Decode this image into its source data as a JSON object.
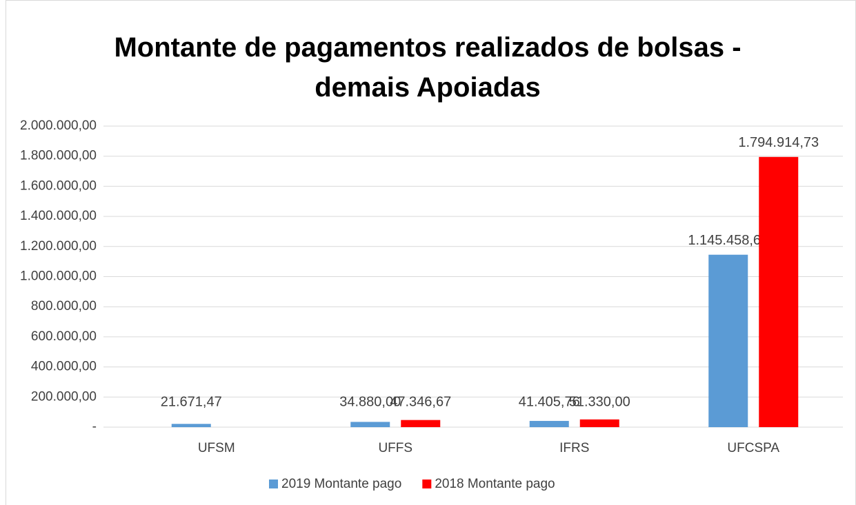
{
  "chart_data": {
    "type": "bar",
    "title": "Montante de pagamentos realizados de bolsas - demais Apoiadas",
    "categories": [
      "UFSM",
      "UFFS",
      "IFRS",
      "UFCSPA"
    ],
    "series": [
      {
        "name": "2019 Montante pago",
        "color": "#5b9bd5",
        "values": [
          21671.47,
          34880.0,
          41405.76,
          1145458.66
        ],
        "value_labels": [
          "21.671,47",
          "34.880,00",
          "41.405,76",
          "1.145.458,66"
        ]
      },
      {
        "name": "2018 Montante pago",
        "color": "#ff0000",
        "values": [
          null,
          47346.67,
          51330.0,
          1794914.73
        ],
        "value_labels": [
          null,
          "47.346,67",
          "51.330,00",
          "1.794.914,73"
        ]
      }
    ],
    "ylim": [
      0,
      2000000
    ],
    "yticks": [
      {
        "value": 0,
        "label": "-"
      },
      {
        "value": 200000,
        "label": "200.000,00"
      },
      {
        "value": 400000,
        "label": "400.000,00"
      },
      {
        "value": 600000,
        "label": "600.000,00"
      },
      {
        "value": 800000,
        "label": "800.000,00"
      },
      {
        "value": 1000000,
        "label": "1.000.000,00"
      },
      {
        "value": 1200000,
        "label": "1.200.000,00"
      },
      {
        "value": 1400000,
        "label": "1.400.000,00"
      },
      {
        "value": 1600000,
        "label": "1.600.000,00"
      },
      {
        "value": 1800000,
        "label": "1.800.000,00"
      },
      {
        "value": 2000000,
        "label": "2.000.000,00"
      }
    ],
    "grid": true,
    "legend": "bottom"
  }
}
